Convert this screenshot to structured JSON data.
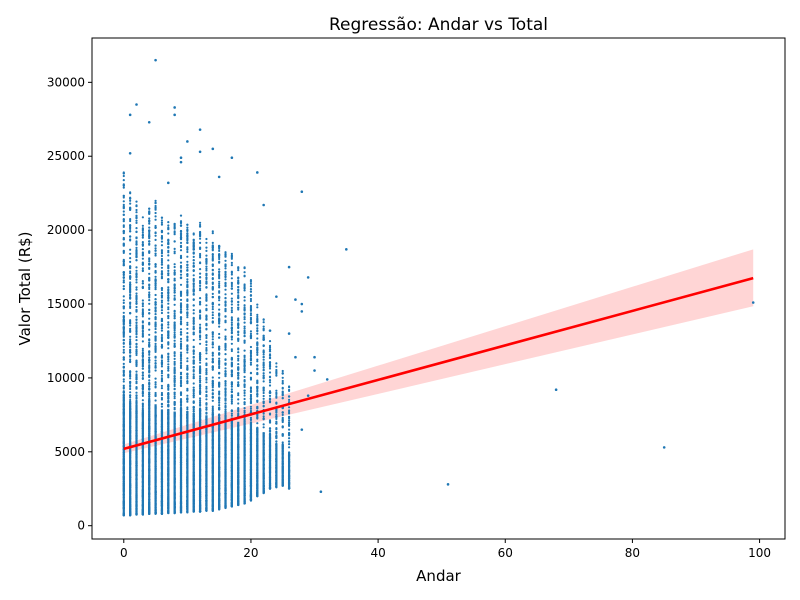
{
  "chart_data": {
    "type": "scatter",
    "title": "Regressão: Andar vs Total",
    "xlabel": "Andar",
    "ylabel": "Valor Total (R$)",
    "xlim": [
      -5,
      104
    ],
    "ylim": [
      -900,
      33000
    ],
    "xticks": [
      0,
      20,
      40,
      60,
      80,
      100
    ],
    "xtick_labels": [
      "0",
      "20",
      "40",
      "60",
      "80",
      "100"
    ],
    "yticks": [
      0,
      5000,
      10000,
      15000,
      20000,
      25000,
      30000
    ],
    "ytick_labels": [
      "0",
      "5000",
      "10000",
      "15000",
      "20000",
      "25000",
      "30000"
    ],
    "grid": false,
    "colors": {
      "points": "#1f77b4",
      "regression_line": "#ff0000",
      "confidence_band": "#ffb3b3"
    },
    "regression": {
      "x": [
        0,
        99
      ],
      "y": [
        5200,
        16750
      ],
      "ci_lower": [
        4900,
        14850
      ],
      "ci_upper": [
        5500,
        18700
      ]
    },
    "dense_columns": [
      {
        "x": 0,
        "ymin": 700,
        "ymax": 24000
      },
      {
        "x": 1,
        "ymin": 700,
        "ymax": 22800
      },
      {
        "x": 2,
        "ymin": 750,
        "ymax": 22000
      },
      {
        "x": 3,
        "ymin": 750,
        "ymax": 21000
      },
      {
        "x": 4,
        "ymin": 800,
        "ymax": 22500
      },
      {
        "x": 5,
        "ymin": 800,
        "ymax": 22000
      },
      {
        "x": 6,
        "ymin": 800,
        "ymax": 21000
      },
      {
        "x": 7,
        "ymin": 850,
        "ymax": 21000
      },
      {
        "x": 8,
        "ymin": 850,
        "ymax": 20500
      },
      {
        "x": 9,
        "ymin": 900,
        "ymax": 21000
      },
      {
        "x": 10,
        "ymin": 900,
        "ymax": 20500
      },
      {
        "x": 11,
        "ymin": 950,
        "ymax": 20000
      },
      {
        "x": 12,
        "ymin": 950,
        "ymax": 20500
      },
      {
        "x": 13,
        "ymin": 1000,
        "ymax": 19500
      },
      {
        "x": 14,
        "ymin": 1000,
        "ymax": 20000
      },
      {
        "x": 15,
        "ymin": 1100,
        "ymax": 19000
      },
      {
        "x": 16,
        "ymin": 1200,
        "ymax": 19000
      },
      {
        "x": 17,
        "ymin": 1300,
        "ymax": 18500
      },
      {
        "x": 18,
        "ymin": 1400,
        "ymax": 17500
      },
      {
        "x": 19,
        "ymin": 1500,
        "ymax": 17500
      },
      {
        "x": 20,
        "ymin": 1700,
        "ymax": 17000
      },
      {
        "x": 21,
        "ymin": 2000,
        "ymax": 15000
      },
      {
        "x": 22,
        "ymin": 2200,
        "ymax": 14000
      },
      {
        "x": 23,
        "ymin": 2500,
        "ymax": 12500
      },
      {
        "x": 24,
        "ymin": 2600,
        "ymax": 11000
      },
      {
        "x": 25,
        "ymin": 2700,
        "ymax": 10500
      },
      {
        "x": 26,
        "ymin": 2500,
        "ymax": 9500
      }
    ],
    "outliers": [
      [
        5,
        31500
      ],
      [
        2,
        28500
      ],
      [
        8,
        28300
      ],
      [
        1,
        27800
      ],
      [
        4,
        27300
      ],
      [
        12,
        26800
      ],
      [
        8,
        27800
      ],
      [
        10,
        26000
      ],
      [
        14,
        25500
      ],
      [
        12,
        25300
      ],
      [
        17,
        24900
      ],
      [
        1,
        25200
      ],
      [
        9,
        24900
      ],
      [
        9,
        24600
      ],
      [
        21,
        23900
      ],
      [
        7,
        23200
      ],
      [
        15,
        23600
      ],
      [
        28,
        22600
      ],
      [
        22,
        21700
      ],
      [
        35,
        18700
      ],
      [
        26,
        17500
      ],
      [
        29,
        16800
      ],
      [
        27,
        15300
      ],
      [
        28,
        15000
      ],
      [
        28,
        14500
      ],
      [
        26,
        13000
      ],
      [
        30,
        11400
      ],
      [
        32,
        9900
      ],
      [
        29,
        8800
      ],
      [
        28,
        6500
      ],
      [
        31,
        2300
      ],
      [
        51,
        2800
      ],
      [
        68,
        9200
      ],
      [
        85,
        5300
      ],
      [
        99,
        15100
      ],
      [
        30,
        10500
      ],
      [
        27,
        11400
      ],
      [
        25,
        8000
      ],
      [
        23,
        13200
      ],
      [
        24,
        15500
      ],
      [
        22,
        12600
      ],
      [
        23,
        9000
      ]
    ]
  }
}
